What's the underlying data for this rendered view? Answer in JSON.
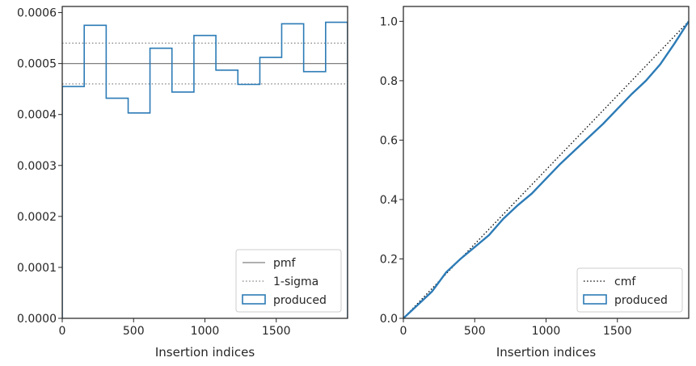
{
  "chart_data": [
    {
      "type": "step",
      "xlabel": "Insertion indices",
      "ylabel": "",
      "xlim": [
        0,
        2000
      ],
      "ylim": [
        0,
        0.000612
      ],
      "xticks": [
        0,
        500,
        1000,
        1500
      ],
      "xtick_labels": [
        "0",
        "500",
        "1000",
        "1500"
      ],
      "yticks": [
        0,
        0.0001,
        0.0002,
        0.0003,
        0.0004,
        0.0005,
        0.0006
      ],
      "ytick_labels": [
        "0.0000",
        "0.0001",
        "0.0002",
        "0.0003",
        "0.0004",
        "0.0005",
        "0.0006"
      ],
      "grid": false,
      "legend_position": "lower-right",
      "lines": [
        {
          "name": "pmf",
          "y": 0.0005,
          "style": "solid",
          "color": "#808080"
        },
        {
          "name": "1-sigma",
          "y_values": [
            0.00046,
            0.00054
          ],
          "style": "dotted",
          "color": "#808080"
        }
      ],
      "histogram": {
        "name": "produced",
        "color": "#2c7bb6",
        "bin_edges": [
          0,
          154,
          308,
          462,
          615,
          769,
          923,
          1077,
          1231,
          1385,
          1538,
          1692,
          1846,
          2000
        ],
        "values": [
          0.000455,
          0.000575,
          0.000432,
          0.000403,
          0.00053,
          0.000444,
          0.000555,
          0.000487,
          0.000459,
          0.000512,
          0.000578,
          0.000484,
          0.000581
        ]
      }
    },
    {
      "type": "line",
      "xlabel": "Insertion indices",
      "ylabel": "",
      "xlim": [
        0,
        2000
      ],
      "ylim": [
        0,
        1.05
      ],
      "xticks": [
        0,
        500,
        1000,
        1500
      ],
      "xtick_labels": [
        "0",
        "500",
        "1000",
        "1500"
      ],
      "yticks": [
        0,
        0.2,
        0.4,
        0.6,
        0.8,
        1.0
      ],
      "ytick_labels": [
        "0.0",
        "0.2",
        "0.4",
        "0.6",
        "0.8",
        "1.0"
      ],
      "grid": false,
      "legend_position": "lower-right",
      "series": [
        {
          "name": "cmf",
          "style": "dotted",
          "color": "#000000",
          "x": [
            0,
            2000
          ],
          "y": [
            0,
            1.0
          ]
        },
        {
          "name": "produced",
          "style": "solid",
          "color": "#2c7bb6",
          "x": [
            0,
            100,
            200,
            300,
            400,
            500,
            600,
            700,
            800,
            900,
            1000,
            1100,
            1200,
            1300,
            1400,
            1500,
            1600,
            1700,
            1800,
            1900,
            2000
          ],
          "y": [
            0,
            0.045,
            0.09,
            0.155,
            0.2,
            0.24,
            0.28,
            0.335,
            0.38,
            0.42,
            0.47,
            0.52,
            0.565,
            0.61,
            0.655,
            0.705,
            0.755,
            0.8,
            0.855,
            0.925,
            1.0
          ]
        }
      ]
    }
  ]
}
